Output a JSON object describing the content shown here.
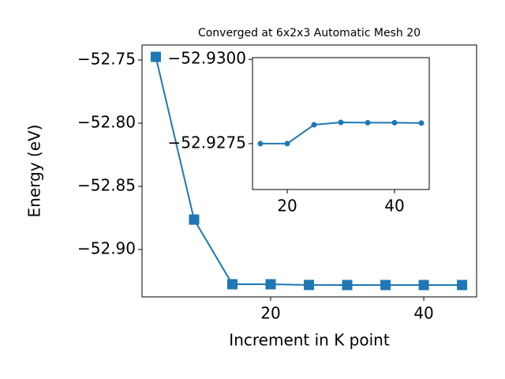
{
  "chart_data": [
    {
      "type": "line",
      "title": "Converged at 6x2x3 Automatic Mesh 20",
      "x_label": "Increment in K point",
      "y_label": "Energy (eV)",
      "x": [
        5,
        10,
        15,
        20,
        25,
        30,
        35,
        40,
        45
      ],
      "series": [
        {
          "color": "#1f77b4",
          "marker": "square",
          "values": [
            -52.7475,
            -52.8763,
            -52.9275,
            -52.9275,
            -52.92806,
            -52.92813,
            -52.92812,
            -52.92812,
            -52.92811
          ]
        }
      ],
      "xlim": [
        3.2,
        46.9
      ],
      "xticks": [
        20,
        40
      ],
      "ylim": [
        -52.9375,
        -52.7381
      ],
      "yticks": [
        {
          "value": -52.9,
          "label": "−52.90"
        },
        {
          "value": -52.85,
          "label": "−52.85"
        },
        {
          "value": -52.8,
          "label": "−52.80"
        },
        {
          "value": -52.75,
          "label": "−52.75"
        }
      ]
    },
    {
      "type": "line",
      "x": [
        15,
        20,
        25,
        30,
        35,
        40,
        45
      ],
      "series": [
        {
          "color": "#1f77b4",
          "marker": "circle",
          "values": [
            -52.9275,
            -52.9275,
            -52.92806,
            -52.92813,
            -52.92812,
            -52.92812,
            -52.92811
          ]
        }
      ],
      "xlim": [
        13.53,
        46.47
      ],
      "xticks": [
        20,
        40
      ],
      "ylim": [
        -52.92614,
        -52.93005
      ],
      "yticks": [
        {
          "value": -52.9275,
          "label": "−52.9275"
        },
        {
          "value": -52.93,
          "label": "−52.9300"
        }
      ]
    }
  ]
}
